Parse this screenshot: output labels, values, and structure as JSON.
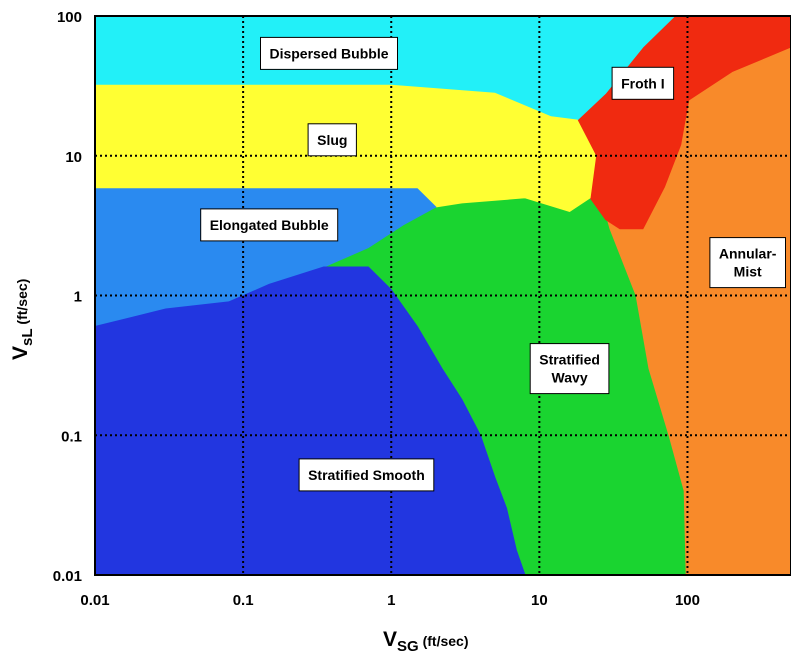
{
  "chart_data": {
    "type": "heatmap",
    "x_scale": "log",
    "y_scale": "log",
    "xlim": [
      0.01,
      500
    ],
    "ylim": [
      0.01,
      100
    ],
    "xticks": [
      "0.01",
      "0.1",
      "1",
      "10",
      "100"
    ],
    "yticks": [
      "0.01",
      "0.1",
      "1",
      "10",
      "100"
    ],
    "xlabel": {
      "main": "V",
      "sub": "SG",
      "unit": " (ft/sec)"
    },
    "ylabel": {
      "main": "V",
      "sub": "sL",
      "unit": " (ft/sec)"
    },
    "grid": "dotted black at decades",
    "regions": [
      {
        "name": "Dispersed Bubble",
        "label_lines": [
          "Dispersed Bubble"
        ],
        "color": "#22f0f8"
      },
      {
        "name": "Slug",
        "label_lines": [
          "Slug"
        ],
        "color": "#ffff33"
      },
      {
        "name": "Elongated Bubble",
        "label_lines": [
          "Elongated Bubble"
        ],
        "color": "#2a8af0"
      },
      {
        "name": "Froth I",
        "label_lines": [
          "Froth I"
        ],
        "color": "#f02a10"
      },
      {
        "name": "Annular-Mist",
        "label_lines": [
          "Annular-",
          "Mist"
        ],
        "color": "#f88a2a"
      },
      {
        "name": "Stratified Wavy",
        "label_lines": [
          "Stratified",
          "Wavy"
        ],
        "color": "#1ad430"
      },
      {
        "name": "Stratified Smooth",
        "label_lines": [
          "Stratified Smooth"
        ],
        "color": "#2236e0"
      }
    ]
  }
}
